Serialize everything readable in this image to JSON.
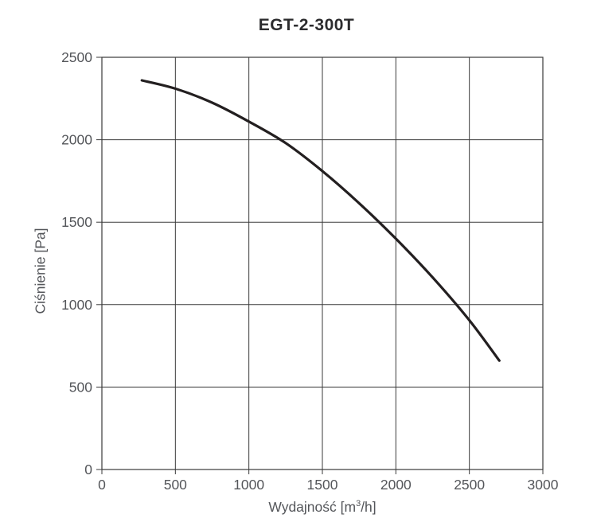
{
  "page": {
    "background": "#ffffff"
  },
  "chart_data": {
    "type": "line",
    "title": "EGT-2-300T",
    "xlabel": "Wydajność [m³/h]",
    "xlabel_parts": {
      "prefix": "Wydajność [m",
      "sup": "3",
      "suffix": "/h]"
    },
    "ylabel": "Ciśnienie [Pa]",
    "xlim": [
      0,
      3000
    ],
    "ylim": [
      0,
      2500
    ],
    "x_ticks": [
      0,
      500,
      1000,
      1500,
      2000,
      2500,
      3000
    ],
    "y_ticks": [
      0,
      500,
      1000,
      1500,
      2000,
      2500
    ],
    "grid": true,
    "legend": "none",
    "series": [
      {
        "name": "EGT-2-300T",
        "points": [
          [
            272,
            2360
          ],
          [
            500,
            2310
          ],
          [
            750,
            2225
          ],
          [
            1000,
            2110
          ],
          [
            1250,
            1980
          ],
          [
            1500,
            1810
          ],
          [
            1750,
            1615
          ],
          [
            2000,
            1400
          ],
          [
            2250,
            1165
          ],
          [
            2500,
            905
          ],
          [
            2704,
            660
          ]
        ]
      }
    ],
    "colors": {
      "curve": "#231f20",
      "grid": "#3a3a3a",
      "axis_text": "#54565a",
      "title_text": "#2c2c2e"
    }
  }
}
